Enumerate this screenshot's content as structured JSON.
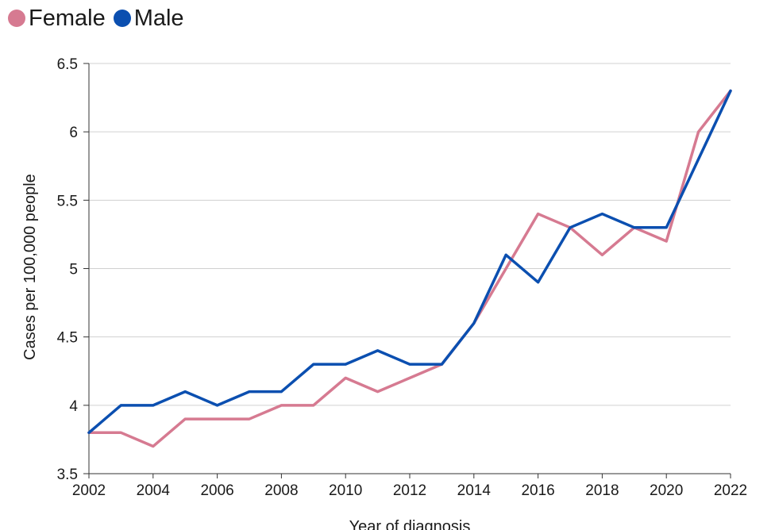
{
  "legend": [
    {
      "name": "Female",
      "color": "#d67a91"
    },
    {
      "name": "Male",
      "color": "#0b4fb0"
    }
  ],
  "chart_data": {
    "type": "line",
    "title": "",
    "xlabel": "Year of diagnosis",
    "ylabel": "Cases per 100,000 people",
    "x": [
      2002,
      2003,
      2004,
      2005,
      2006,
      2007,
      2008,
      2009,
      2010,
      2011,
      2012,
      2013,
      2014,
      2015,
      2016,
      2017,
      2018,
      2019,
      2020,
      2021,
      2022
    ],
    "xlim": [
      2002,
      2022
    ],
    "ylim": [
      3.5,
      6.5
    ],
    "xticks": [
      "2002",
      "2004",
      "2006",
      "2008",
      "2010",
      "2012",
      "2014",
      "2016",
      "2018",
      "2020",
      "2022"
    ],
    "yticks": [
      "3.5",
      "4",
      "4.5",
      "5",
      "5.5",
      "6",
      "6.5"
    ],
    "grid": true,
    "legend_position": "top-left",
    "series": [
      {
        "name": "Female",
        "color": "#d67a91",
        "values": [
          3.8,
          3.8,
          3.7,
          3.9,
          3.9,
          3.9,
          4.0,
          4.0,
          4.2,
          4.1,
          4.2,
          4.3,
          4.6,
          5.0,
          5.4,
          5.3,
          5.1,
          5.3,
          5.2,
          6.0,
          6.3
        ]
      },
      {
        "name": "Male",
        "color": "#0b4fb0",
        "values": [
          3.8,
          4.0,
          4.0,
          4.1,
          4.0,
          4.1,
          4.1,
          4.3,
          4.3,
          4.4,
          4.3,
          4.3,
          4.6,
          5.1,
          4.9,
          5.3,
          5.4,
          5.3,
          5.3,
          5.8,
          6.3
        ]
      }
    ]
  }
}
